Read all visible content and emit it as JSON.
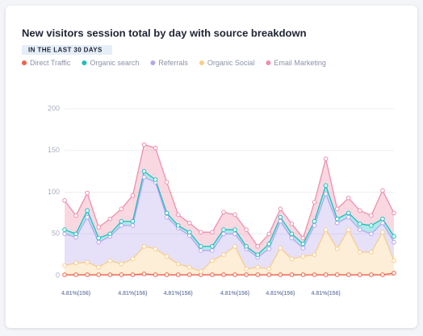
{
  "chart_data": {
    "type": "stacked_area",
    "title": "New visitors session total by day with source breakdown",
    "subtitle": "IN THE LAST 30 DAYS",
    "categories": [
      null,
      "4.81%(156)",
      null,
      null,
      null,
      null,
      "4.81%(156)",
      null,
      null,
      null,
      "4.81%(156)",
      null,
      null,
      null,
      null,
      "4.81%(156)",
      null,
      null,
      null,
      "4.81%(156)",
      null,
      null,
      null,
      "4.81%(156)",
      null,
      null,
      null,
      null,
      null,
      null
    ],
    "series": [
      {
        "name": "Direct Traffic",
        "color": "#f0624a",
        "values": [
          1,
          1,
          1,
          1,
          1,
          1,
          1,
          2,
          1,
          1,
          1,
          1,
          1,
          1,
          1,
          1,
          1,
          1,
          1,
          1,
          1,
          1,
          1,
          1,
          1,
          1,
          1,
          1,
          1,
          3
        ]
      },
      {
        "name": "Organic search",
        "color": "#1bbfbf",
        "values": [
          5,
          4,
          8,
          5,
          3,
          5,
          5,
          7,
          3,
          5,
          3,
          4,
          5,
          5,
          5,
          5,
          3,
          3,
          6,
          5,
          5,
          5,
          5,
          10,
          5,
          5,
          7,
          10,
          5,
          7
        ]
      },
      {
        "name": "Referrals",
        "color": "#b7a6ee",
        "values": [
          38,
          31,
          54,
          30,
          29,
          46,
          40,
          83,
          80,
          47,
          43,
          38,
          25,
          12,
          25,
          15,
          24,
          12,
          24,
          32,
          25,
          10,
          35,
          43,
          31,
          15,
          27,
          22,
          11,
          22
        ]
      },
      {
        "name": "Organic Social",
        "color": "#f8cd8c",
        "values": [
          11,
          14,
          15,
          9,
          17,
          13,
          19,
          33,
          31,
          22,
          13,
          9,
          4,
          17,
          24,
          34,
          7,
          9,
          7,
          32,
          19,
          22,
          24,
          54,
          31,
          54,
          27,
          27,
          51,
          15
        ]
      },
      {
        "name": "Email Marketing",
        "color": "#ee8fab",
        "values": [
          35,
          22,
          21,
          13,
          18,
          15,
          31,
          32,
          38,
          37,
          13,
          11,
          17,
          17,
          21,
          18,
          20,
          10,
          12,
          10,
          12,
          7,
          23,
          32,
          12,
          18,
          16,
          12,
          34,
          28
        ]
      }
    ],
    "ylim": [
      0,
      200
    ],
    "yticks": [
      0,
      50,
      100,
      150,
      200
    ],
    "grid": true
  }
}
